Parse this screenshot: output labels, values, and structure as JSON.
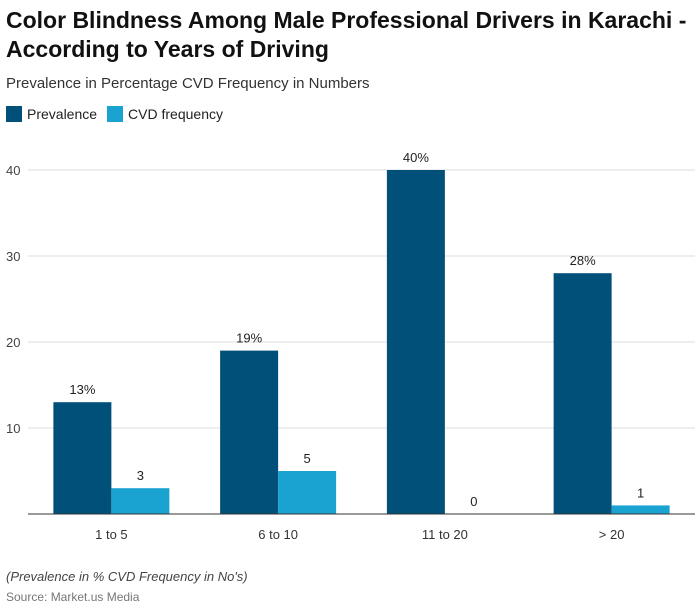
{
  "title": "Color Blindness Among Male Professional Drivers in Karachi - According to Years of Driving",
  "subtitle": "Prevalence in Percentage CVD Frequency in Numbers",
  "note": "(Prevalence in % CVD Frequency in No's)",
  "source": "Source: Market.us Media",
  "chart_data": {
    "type": "bar",
    "categories": [
      "1 to 5",
      "6 to 10",
      "11 to 20",
      "> 20"
    ],
    "series": [
      {
        "name": "Prevalence",
        "values": [
          13,
          19,
          40,
          28
        ],
        "labels": [
          "13%",
          "19%",
          "40%",
          "28%"
        ],
        "color": "#00507a"
      },
      {
        "name": "CVD frequency",
        "values": [
          3,
          5,
          0,
          1
        ],
        "labels": [
          "3",
          "5",
          "0",
          "1"
        ],
        "color": "#1aa3d1"
      }
    ],
    "yticks": [
      10,
      20,
      30,
      40
    ],
    "ylim": [
      0,
      40
    ],
    "grid": true,
    "legend": "top-left"
  }
}
